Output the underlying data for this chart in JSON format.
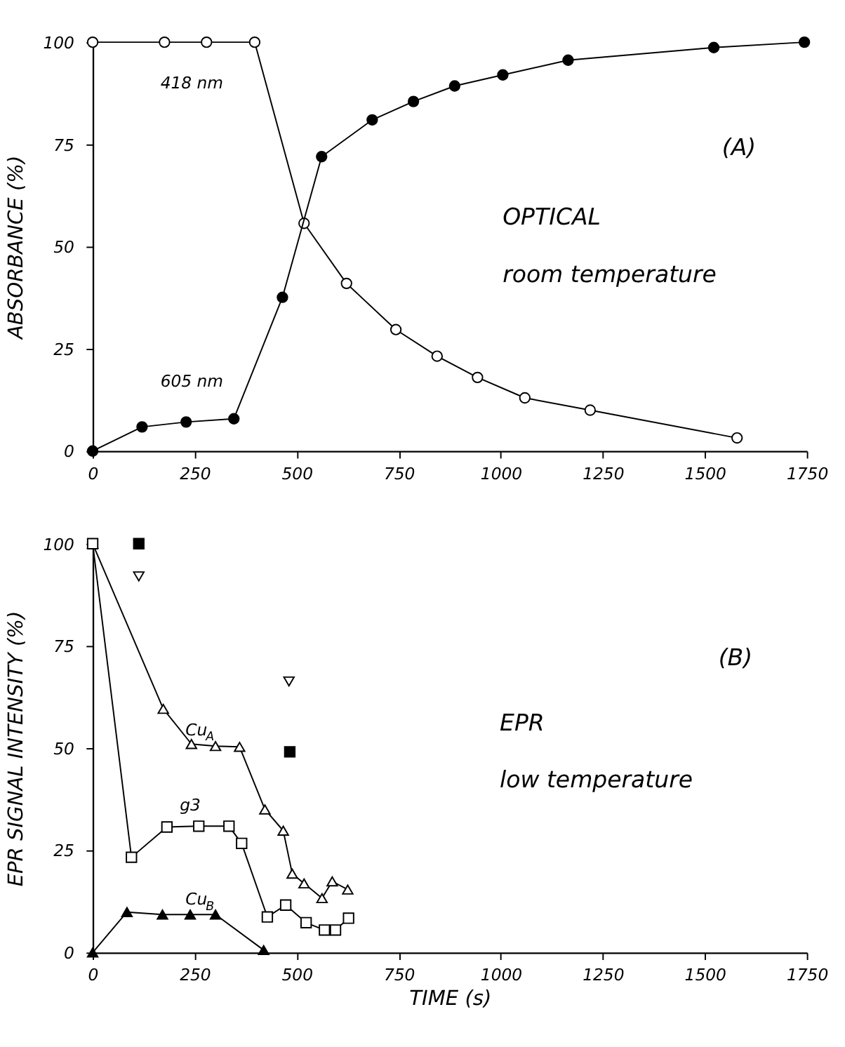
{
  "chart_data": [
    {
      "type": "line",
      "ylabel": "ABSORBANCE (%)",
      "xlim": [
        0,
        1750
      ],
      "xticks": [
        0,
        250,
        500,
        750,
        1000,
        1250,
        1500,
        1750
      ],
      "ylim": [
        0,
        100
      ],
      "yticks": [
        0,
        25,
        50,
        75,
        100
      ],
      "grid": false,
      "legend": false,
      "line_style": "solid",
      "series": [
        {
          "color": "#000000",
          "marker": "circle",
          "colors": [
            "#ffffff",
            "#ffffff",
            "#ffffff",
            "#ffffff",
            "#ffffff",
            "#ffffff",
            "#ffffff",
            "#ffffff",
            "#ffffff",
            "#ffffff",
            "#ffffff",
            "#ffffff"
          ],
          "x": [
            0,
            176,
            279,
            397,
            518,
            622,
            743,
            844,
            943,
            1059,
            1219,
            1579
          ],
          "values": [
            100,
            100,
            100,
            100,
            55.7,
            41,
            29.7,
            23.2,
            18,
            13,
            10,
            3.2
          ]
        },
        {
          "color": "#000000",
          "marker": "circle",
          "x": [
            0,
            121,
            229,
            346,
            465,
            561,
            685,
            786,
            887,
            1005,
            1165,
            1522,
            1744
          ],
          "values": [
            0,
            5.9,
            7.1,
            7.9,
            37.6,
            72,
            81,
            85.5,
            89.3,
            92,
            95.6,
            98.7,
            100
          ]
        }
      ],
      "annotations": [
        "418 nm",
        "605 nm",
        "(A)",
        "OPTICAL",
        "room temperature"
      ]
    },
    {
      "type": "line",
      "xlabel": "TIME (s)",
      "ylabel": "EPR SIGNAL INTENSITY (%)",
      "xlim": [
        0,
        1750
      ],
      "xticks": [
        0,
        250,
        500,
        750,
        1000,
        1250,
        1500,
        1750
      ],
      "ylim": [
        0,
        100
      ],
      "yticks": [
        0,
        25,
        50,
        75,
        100
      ],
      "grid": false,
      "legend": false,
      "line_style": "solid",
      "series": [
        {
          "color": "#000000",
          "marker": "triangle",
          "colors": [
            "#ffffff",
            "#ffffff",
            "#ffffff",
            "#ffffff",
            "#ffffff",
            "#ffffff",
            "#ffffff",
            "#ffffff",
            "#ffffff",
            "#ffffff",
            "#ffffff",
            "#ffffff"
          ],
          "x": [
            0,
            173,
            242,
            301,
            360,
            422,
            467,
            489,
            518,
            562,
            587,
            625
          ],
          "values": [
            100,
            59.6,
            51,
            50.5,
            50.3,
            35,
            29.8,
            19.3,
            16.9,
            13.3,
            17.4,
            15.4
          ]
        },
        {
          "color": "#000000",
          "marker": "square",
          "colors": [
            "#ffffff",
            "#ffffff",
            "#ffffff",
            "#ffffff",
            "#ffffff",
            "#ffffff",
            "#ffffff",
            "#ffffff",
            "#ffffff",
            "#ffffff",
            "#ffffff",
            "#ffffff"
          ],
          "x": [
            0,
            95,
            182,
            260,
            334,
            365,
            428,
            473,
            523,
            568,
            595,
            627
          ],
          "values": [
            100,
            23.3,
            30.7,
            30.9,
            30.9,
            26.7,
            8.7,
            11.6,
            7.3,
            5.5,
            5.5,
            8.4
          ]
        },
        {
          "color": "#000000",
          "marker": "triangle",
          "x": [
            0,
            84,
            171,
            239,
            301,
            419
          ],
          "values": [
            0,
            9.9,
            9.3,
            9.3,
            9.3,
            0.6
          ]
        },
        {
          "type": "scatter",
          "color": "#000000",
          "marker": "square",
          "x": [
            113,
            483
          ],
          "values": [
            100,
            49.1
          ]
        },
        {
          "type": "scatter",
          "color": "#000000",
          "marker": "triangle_down",
          "colors": [
            "#ffffff",
            "#ffffff"
          ],
          "x": [
            113,
            481
          ],
          "values": [
            92,
            66.3
          ]
        }
      ],
      "annotations": [
        "Cu$_{A}$",
        "g3",
        "Cu$_{B}$",
        "(B)",
        "EPR",
        "low temperature"
      ]
    }
  ]
}
